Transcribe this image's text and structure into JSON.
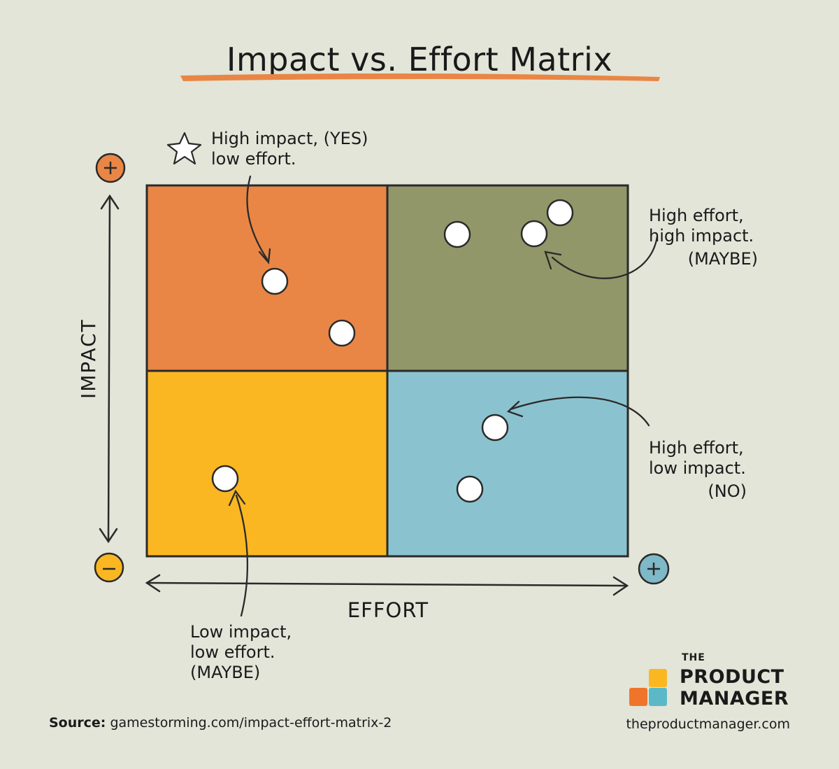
{
  "title": "Impact vs. Effort Matrix",
  "axes": {
    "y_label": "IMPACT",
    "x_label": "EFFORT",
    "plus_symbol": "+",
    "minus_symbol": "−"
  },
  "quadrants": [
    {
      "id": "high-impact-low-effort",
      "color": "#e98646",
      "annotation": {
        "line1": "High impact, (YES)",
        "line2": "low effort.",
        "line3": ""
      }
    },
    {
      "id": "high-impact-high-effort",
      "color": "#92976a",
      "annotation": {
        "line1": "High effort,",
        "line2": "high impact.",
        "line3": "(MAYBE)"
      }
    },
    {
      "id": "low-impact-low-effort",
      "color": "#fbb722",
      "annotation": {
        "line1": "Low impact,",
        "line2": "low effort.",
        "line3": "(MAYBE)"
      }
    },
    {
      "id": "low-impact-high-effort",
      "color": "#8bc2cf",
      "annotation": {
        "line1": "High effort,",
        "line2": "low impact.",
        "line3": "(NO)"
      }
    }
  ],
  "colors": {
    "background": "#e2e5d8",
    "title_underline": "#e98646",
    "impact_plus": "#e98646",
    "impact_minus": "#fbb722",
    "effort_plus": "#7fb8c7",
    "brand_orange": "#f0752a",
    "brand_yellow": "#fbb722",
    "brand_teal": "#5bb8c7"
  },
  "footer": {
    "source_label": "Source:",
    "source_url": "gamestorming.com/impact-effort-matrix-2",
    "site": "theproductmanager.com"
  },
  "brand": {
    "the": "THE",
    "line1": "PRODUCT",
    "line2": "MANAGER"
  }
}
